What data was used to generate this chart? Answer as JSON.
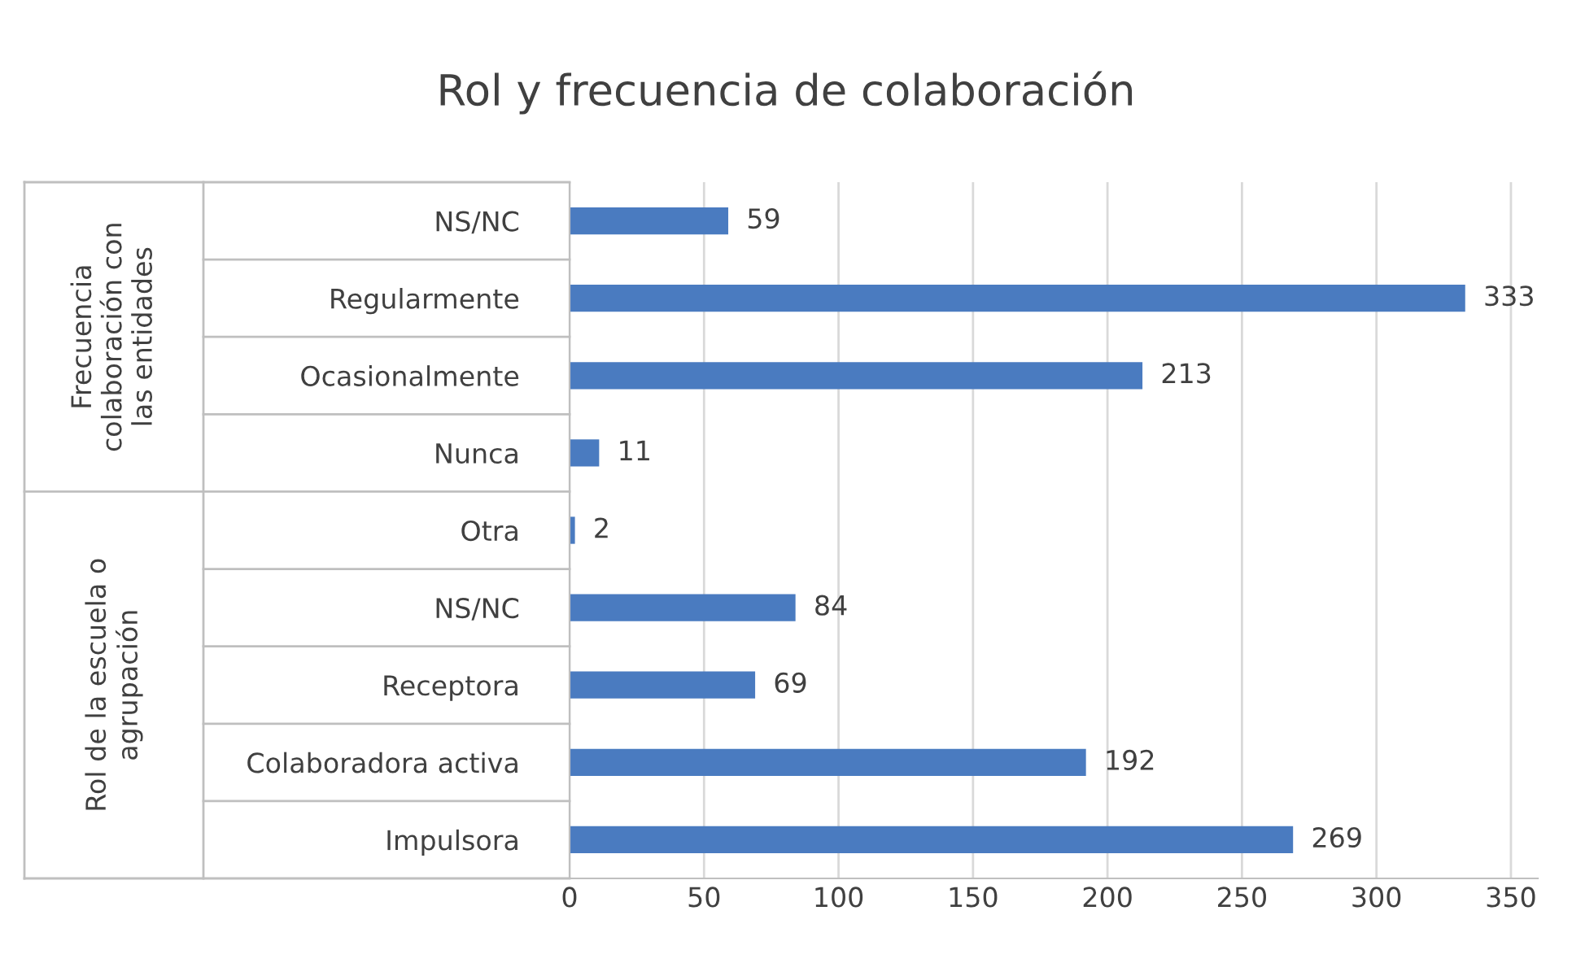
{
  "chart_data": {
    "type": "bar",
    "orientation": "horizontal",
    "title": "Rol y frecuencia de colaboración",
    "categories": [
      "NS/NC",
      "Regularmente",
      "Ocasionalmente",
      "Nunca",
      "Otra",
      "NS/NC",
      "Receptora",
      "Colaboradora activa",
      "Impulsora"
    ],
    "values": [
      59,
      333,
      213,
      11,
      2,
      84,
      69,
      192,
      269
    ],
    "color": "#4a7bc0",
    "xlim": [
      0,
      360
    ],
    "xticks": [
      0,
      50,
      100,
      150,
      200,
      250,
      300,
      350
    ],
    "grid": "x",
    "data_labels": true,
    "annotations": [
      "Frecuencia\ncolaboración con\nlas entidades",
      "Rol de la escuela o\nagrupación"
    ]
  }
}
